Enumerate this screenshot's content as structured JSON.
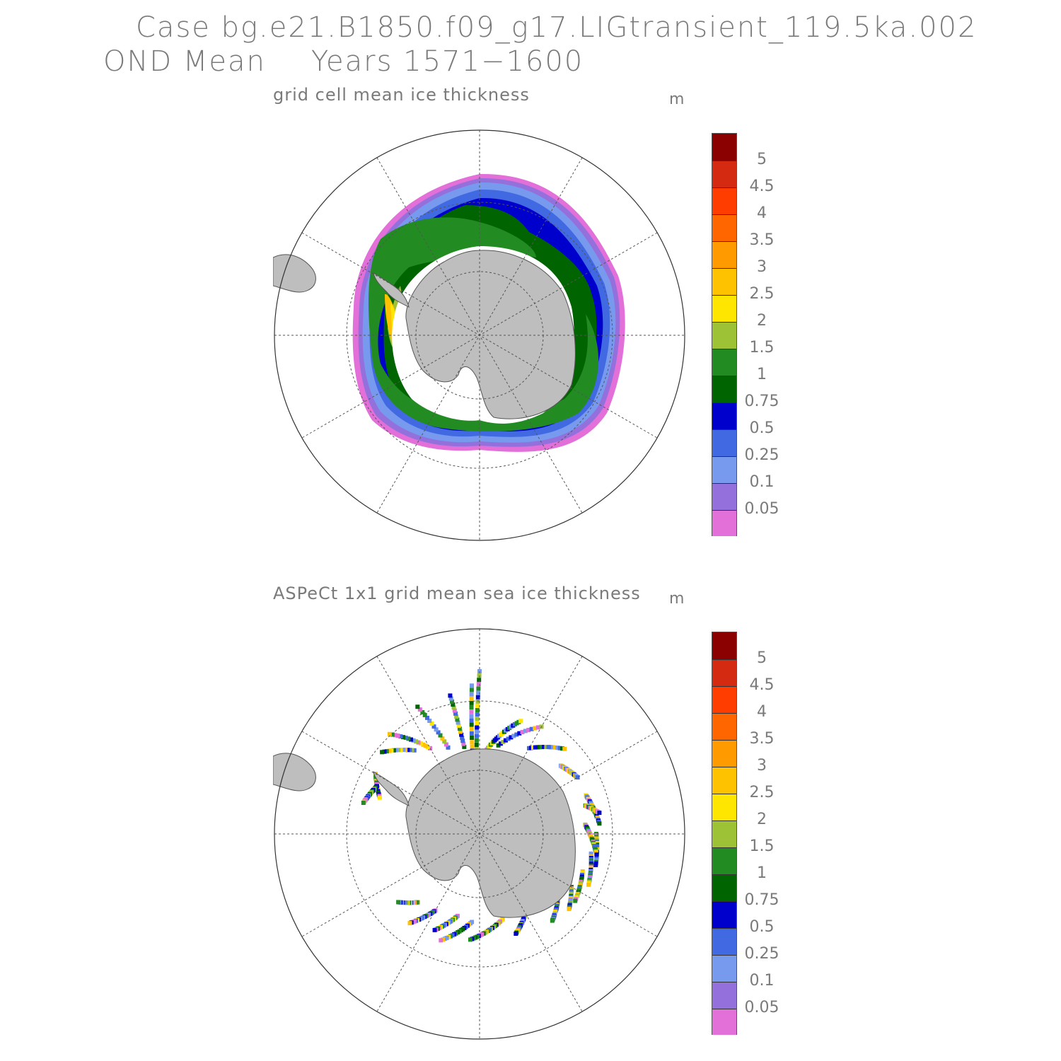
{
  "header": {
    "case": "Case bg.e21.B1850.f09_g17.LIGtransient_119.5ka.002",
    "season": "OND Mean",
    "years": "Years 1571−1600"
  },
  "panels": [
    {
      "title": "grid cell mean ice thickness",
      "unit": "m",
      "data_type": "model-field"
    },
    {
      "title": "ASPeCt 1x1 grid mean sea ice thickness",
      "unit": "m",
      "data_type": "observations-sparse"
    }
  ],
  "colorbar": {
    "labels": [
      "5",
      "4.5",
      "4",
      "3.5",
      "3",
      "2.5",
      "2",
      "1.5",
      "1",
      "0.75",
      "0.5",
      "0.25",
      "0.1",
      "0.05"
    ],
    "colors": [
      "#8b0000",
      "#d42a12",
      "#ff3d00",
      "#ff6600",
      "#ff9a00",
      "#ffc200",
      "#ffe600",
      "#9dc236",
      "#228b22",
      "#006400",
      "#0000cd",
      "#4169e1",
      "#7799ee",
      "#9370db",
      "#e36fd9"
    ]
  },
  "map_colors": {
    "land": "#bebebe",
    "coast": "#555555",
    "grid": "#555555",
    "circle": "#333333"
  }
}
